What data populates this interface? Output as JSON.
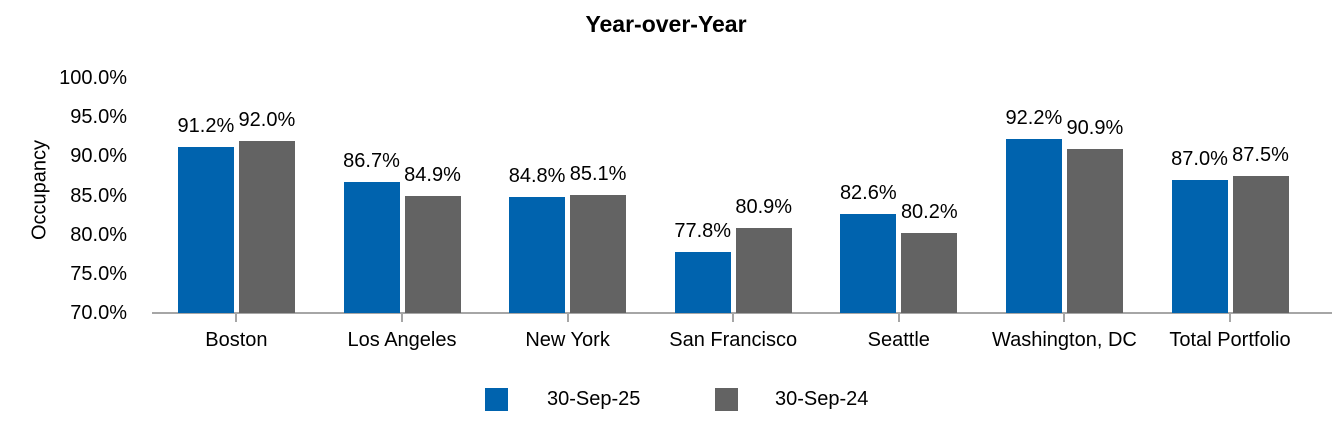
{
  "chart_data": {
    "type": "bar",
    "title": "Year-over-Year",
    "ylabel": "Occupancy",
    "xlabel": "",
    "categories": [
      "Boston",
      "Los Angeles",
      "New York",
      "San Francisco",
      "Seattle",
      "Washington, DC",
      "Total Portfolio"
    ],
    "series": [
      {
        "name": "30-Sep-25",
        "color": "#0063ae",
        "values": [
          91.2,
          86.7,
          84.8,
          77.8,
          82.6,
          92.2,
          87.0
        ],
        "labels": [
          "91.2%",
          "86.7%",
          "84.8%",
          "77.8%",
          "82.6%",
          "92.2%",
          "87.0%"
        ]
      },
      {
        "name": "30-Sep-24",
        "color": "#636363",
        "values": [
          92.0,
          84.9,
          85.1,
          80.9,
          80.2,
          90.9,
          87.5
        ],
        "labels": [
          "92.0%",
          "84.9%",
          "85.1%",
          "80.9%",
          "80.2%",
          "90.9%",
          "87.5%"
        ]
      }
    ],
    "y_ticks": [
      "100.0%",
      "95.0%",
      "90.0%",
      "85.0%",
      "80.0%",
      "75.0%",
      "70.0%"
    ],
    "ylim": [
      70,
      100
    ],
    "y_tick_step": 5,
    "grid": false,
    "data_labels": true,
    "legend_position": "bottom",
    "axis_color": "#a6a6a6"
  }
}
